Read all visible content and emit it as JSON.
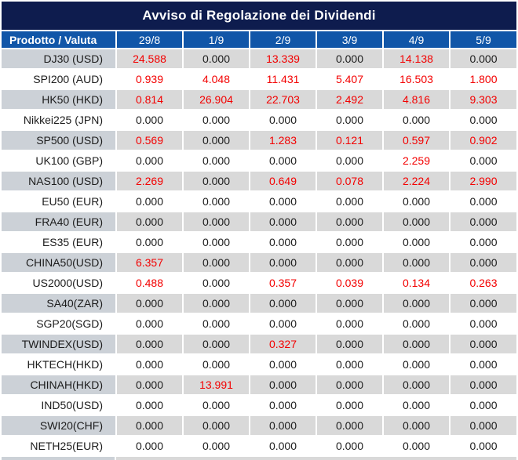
{
  "title": "Avviso di Regolazione dei Dividendi",
  "table": {
    "header": {
      "product_col": "Prodotto / Valuta",
      "dates": [
        "29/8",
        "1/9",
        "2/9",
        "3/9",
        "4/9",
        "5/9"
      ]
    },
    "rows": [
      {
        "product": "DJ30 (USD)",
        "values": [
          "24.588",
          "0.000",
          "13.339",
          "0.000",
          "14.138",
          "0.000"
        ]
      },
      {
        "product": "SPI200 (AUD)",
        "values": [
          "0.939",
          "4.048",
          "11.431",
          "5.407",
          "16.503",
          "1.800"
        ]
      },
      {
        "product": "HK50 (HKD)",
        "values": [
          "0.814",
          "26.904",
          "22.703",
          "2.492",
          "4.816",
          "9.303"
        ]
      },
      {
        "product": "Nikkei225 (JPN)",
        "values": [
          "0.000",
          "0.000",
          "0.000",
          "0.000",
          "0.000",
          "0.000"
        ]
      },
      {
        "product": "SP500 (USD)",
        "values": [
          "0.569",
          "0.000",
          "1.283",
          "0.121",
          "0.597",
          "0.902"
        ]
      },
      {
        "product": "UK100 (GBP)",
        "values": [
          "0.000",
          "0.000",
          "0.000",
          "0.000",
          "2.259",
          "0.000"
        ]
      },
      {
        "product": "NAS100 (USD)",
        "values": [
          "2.269",
          "0.000",
          "0.649",
          "0.078",
          "2.224",
          "2.990"
        ]
      },
      {
        "product": "EU50 (EUR)",
        "values": [
          "0.000",
          "0.000",
          "0.000",
          "0.000",
          "0.000",
          "0.000"
        ]
      },
      {
        "product": "FRA40 (EUR)",
        "values": [
          "0.000",
          "0.000",
          "0.000",
          "0.000",
          "0.000",
          "0.000"
        ]
      },
      {
        "product": "ES35 (EUR)",
        "values": [
          "0.000",
          "0.000",
          "0.000",
          "0.000",
          "0.000",
          "0.000"
        ]
      },
      {
        "product": "CHINA50(USD)",
        "values": [
          "6.357",
          "0.000",
          "0.000",
          "0.000",
          "0.000",
          "0.000"
        ]
      },
      {
        "product": "US2000(USD)",
        "values": [
          "0.488",
          "0.000",
          "0.357",
          "0.039",
          "0.134",
          "0.263"
        ]
      },
      {
        "product": "SA40(ZAR)",
        "values": [
          "0.000",
          "0.000",
          "0.000",
          "0.000",
          "0.000",
          "0.000"
        ]
      },
      {
        "product": "SGP20(SGD)",
        "values": [
          "0.000",
          "0.000",
          "0.000",
          "0.000",
          "0.000",
          "0.000"
        ]
      },
      {
        "product": "TWINDEX(USD)",
        "values": [
          "0.000",
          "0.000",
          "0.327",
          "0.000",
          "0.000",
          "0.000"
        ]
      },
      {
        "product": "HKTECH(HKD)",
        "values": [
          "0.000",
          "0.000",
          "0.000",
          "0.000",
          "0.000",
          "0.000"
        ]
      },
      {
        "product": "CHINAH(HKD)",
        "values": [
          "0.000",
          "13.991",
          "0.000",
          "0.000",
          "0.000",
          "0.000"
        ]
      },
      {
        "product": "IND50(USD)",
        "values": [
          "0.000",
          "0.000",
          "0.000",
          "0.000",
          "0.000",
          "0.000"
        ]
      },
      {
        "product": "SWI20(CHF)",
        "values": [
          "0.000",
          "0.000",
          "0.000",
          "0.000",
          "0.000",
          "0.000"
        ]
      },
      {
        "product": "NETH25(EUR)",
        "values": [
          "0.000",
          "0.000",
          "0.000",
          "0.000",
          "0.000",
          "0.000"
        ]
      }
    ]
  },
  "colors": {
    "title_bg": "#0E1C4E",
    "header_bg": "#1156A8",
    "header_text": "#FFFFFF",
    "row_stripe_bg": "#D9D9D9",
    "row_stripe_label_bg": "#CCD1D7",
    "value_nonzero": "#F30000",
    "value_zero": "#1C1C1C"
  }
}
